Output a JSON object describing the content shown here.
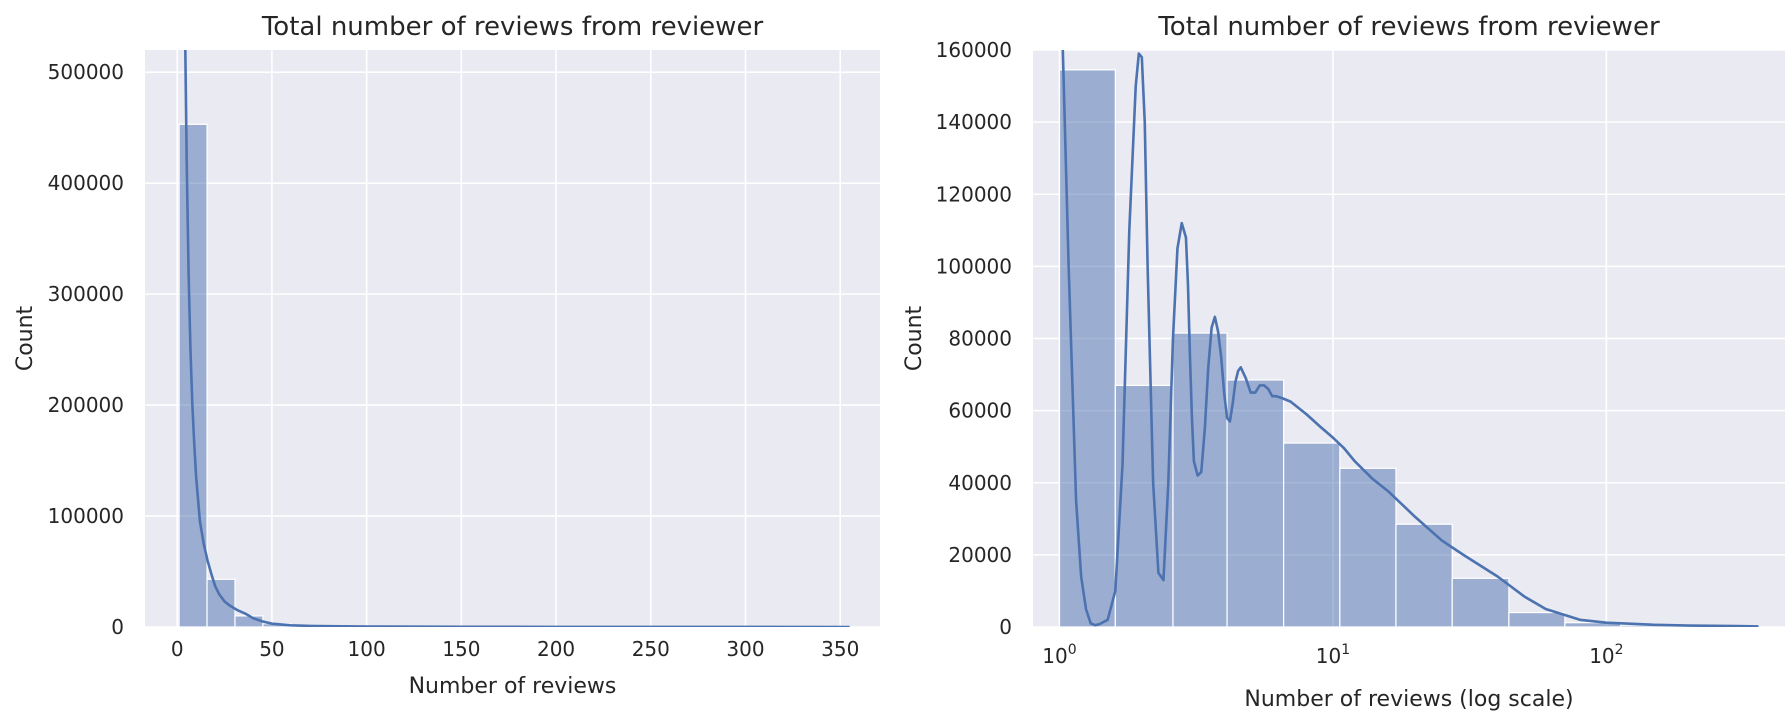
{
  "colors": {
    "axes_background": "#eaeaf2",
    "grid": "#ffffff",
    "bar_fill": "#4c72b0",
    "bar_fill_opacity": 0.5,
    "kde_line": "#4c72b0",
    "text": "#262626"
  },
  "chart_data": [
    {
      "type": "bar",
      "subtype": "histogram-with-kde",
      "title": "Total number of reviews from reviewer",
      "xlabel": "Number of reviews",
      "ylabel": "Count",
      "xscale": "linear",
      "xlim": [
        -17,
        371
      ],
      "ylim": [
        0,
        520000
      ],
      "grid": true,
      "xticks": [
        0,
        50,
        100,
        150,
        200,
        250,
        300,
        350
      ],
      "xtick_labels": [
        "0",
        "50",
        "100",
        "150",
        "200",
        "250",
        "300",
        "350"
      ],
      "yticks": [
        0,
        100000,
        200000,
        300000,
        400000,
        500000
      ],
      "ytick_labels": [
        "0",
        "100000",
        "200000",
        "300000",
        "400000",
        "500000"
      ],
      "bins": [
        {
          "x0": 1,
          "x1": 15.75,
          "count": 453000
        },
        {
          "x0": 15.75,
          "x1": 30.5,
          "count": 43000
        },
        {
          "x0": 30.5,
          "x1": 45.25,
          "count": 10000
        },
        {
          "x0": 45.25,
          "x1": 60,
          "count": 3000
        },
        {
          "x0": 60,
          "x1": 74.75,
          "count": 1500
        },
        {
          "x0": 74.75,
          "x1": 89.5,
          "count": 800
        },
        {
          "x0": 89.5,
          "x1": 104.25,
          "count": 500
        },
        {
          "x0": 104.25,
          "x1": 119,
          "count": 300
        }
      ],
      "kde": {
        "x": [
          4,
          5,
          6,
          7,
          8,
          9,
          10,
          11,
          12,
          14,
          16,
          18,
          20,
          22,
          25,
          28,
          32,
          36,
          40,
          45,
          50,
          60,
          70,
          80,
          100,
          150,
          200,
          250,
          300,
          355
        ],
        "y": [
          560000,
          420000,
          320000,
          250000,
          200000,
          165000,
          135000,
          115000,
          95000,
          75000,
          60000,
          48000,
          37000,
          30000,
          23000,
          19000,
          15000,
          12000,
          8000,
          5000,
          3000,
          1500,
          1000,
          700,
          400,
          200,
          120,
          60,
          30,
          10
        ]
      }
    },
    {
      "type": "bar",
      "subtype": "histogram-with-kde",
      "title": "Total number of reviews from reviewer",
      "xlabel": "Number of reviews (log scale)",
      "ylabel": "Count",
      "xscale": "log",
      "xlim": [
        0.8,
        450
      ],
      "ylim": [
        0,
        160000
      ],
      "grid": true,
      "xticks": [
        1,
        10,
        100
      ],
      "xtick_labels": [
        {
          "base": "10",
          "exp": "0"
        },
        {
          "base": "10",
          "exp": "1"
        },
        {
          "base": "10",
          "exp": "2"
        }
      ],
      "yticks": [
        0,
        20000,
        40000,
        60000,
        80000,
        100000,
        120000,
        140000,
        160000
      ],
      "ytick_labels": [
        "0",
        "20000",
        "40000",
        "60000",
        "80000",
        "100000",
        "120000",
        "140000",
        "160000"
      ],
      "bins": [
        {
          "x0": 1,
          "x1": 1.6,
          "count": 154500
        },
        {
          "x0": 1.6,
          "x1": 2.6,
          "count": 67000
        },
        {
          "x0": 2.6,
          "x1": 4.1,
          "count": 81500
        },
        {
          "x0": 4.1,
          "x1": 6.6,
          "count": 68500
        },
        {
          "x0": 6.6,
          "x1": 10.6,
          "count": 51000
        },
        {
          "x0": 10.6,
          "x1": 17,
          "count": 44000
        },
        {
          "x0": 17,
          "x1": 27.3,
          "count": 28500
        },
        {
          "x0": 27.3,
          "x1": 44,
          "count": 13500
        },
        {
          "x0": 44,
          "x1": 70.5,
          "count": 4000
        },
        {
          "x0": 70.5,
          "x1": 113,
          "count": 1200
        },
        {
          "x0": 113,
          "x1": 182,
          "count": 500
        },
        {
          "x0": 182,
          "x1": 292,
          "count": 250
        },
        {
          "x0": 292,
          "x1": 360,
          "count": 150
        }
      ],
      "kde": {
        "x": [
          1.02,
          1.08,
          1.15,
          1.2,
          1.25,
          1.3,
          1.35,
          1.4,
          1.5,
          1.6,
          1.7,
          1.8,
          1.9,
          1.95,
          2.0,
          2.05,
          2.1,
          2.2,
          2.3,
          2.4,
          2.5,
          2.6,
          2.7,
          2.8,
          2.9,
          2.95,
          3.0,
          3.05,
          3.1,
          3.2,
          3.3,
          3.4,
          3.5,
          3.6,
          3.7,
          3.8,
          3.9,
          4.0,
          4.1,
          4.2,
          4.3,
          4.4,
          4.5,
          4.6,
          4.8,
          5.0,
          5.2,
          5.4,
          5.6,
          5.8,
          6.0,
          6.2,
          6.5,
          7.0,
          8.0,
          9.0,
          10.0,
          11.0,
          12.0,
          14.0,
          16.0,
          20.0,
          25.0,
          30.0,
          40.0,
          50.0,
          60.0,
          80.0,
          100.0,
          150.0,
          200.0,
          300.0,
          360.0
        ],
        "y": [
          170000,
          100000,
          35000,
          14000,
          5000,
          1000,
          500,
          800,
          2000,
          10000,
          45000,
          110000,
          150000,
          159000,
          158000,
          140000,
          100000,
          40000,
          15000,
          13000,
          40000,
          80000,
          105000,
          112000,
          108000,
          95000,
          75000,
          58000,
          46000,
          42000,
          43000,
          55000,
          72000,
          83000,
          86000,
          82000,
          75000,
          65000,
          58000,
          57000,
          62000,
          68000,
          71000,
          72000,
          69000,
          65000,
          65000,
          67000,
          67000,
          66000,
          64000,
          64000,
          63500,
          62500,
          59000,
          55500,
          52500,
          49500,
          46000,
          41000,
          37500,
          30500,
          24000,
          20000,
          14000,
          8500,
          5000,
          2000,
          1200,
          600,
          400,
          250,
          150
        ]
      }
    }
  ]
}
